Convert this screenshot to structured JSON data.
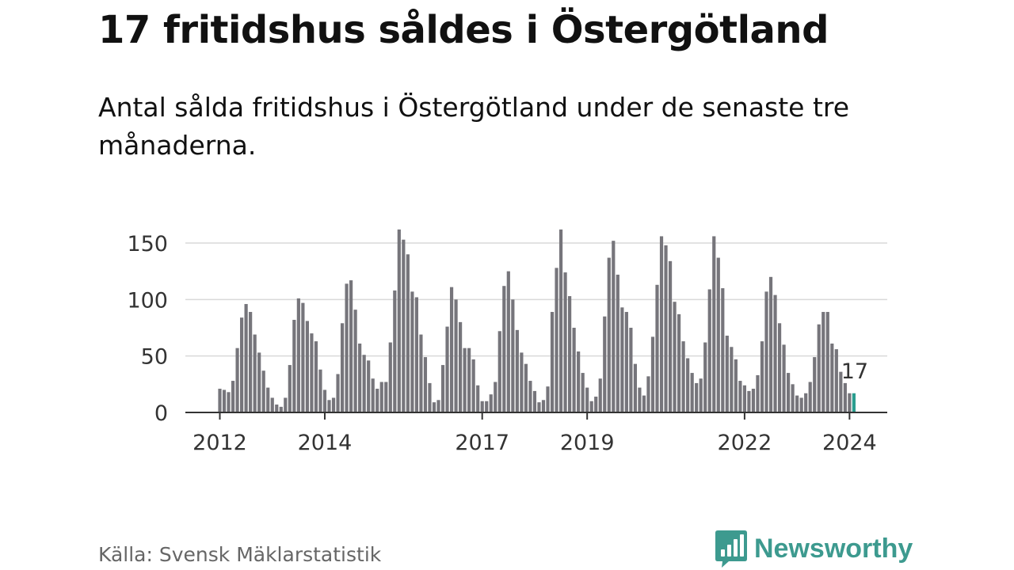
{
  "title": "17 fritidshus såldes i Östergötland",
  "subtitle": "Antal sålda fritidshus i Östergötland under de senaste tre månaderna.",
  "source": "Källa: Svensk Mäklarstatistik",
  "brand": {
    "name": "Newsworthy",
    "icon": "newsworthy-logo-icon",
    "color": "#3d9a8f"
  },
  "colors": {
    "bar": "#76757b",
    "highlight": "#2a9d8f",
    "grid": "#d9d9d9",
    "axis": "#333333"
  },
  "chart_data": {
    "type": "bar",
    "title": "17 fritidshus såldes i Östergötland",
    "xlabel": "",
    "ylabel": "",
    "ylim": [
      0,
      160
    ],
    "yticks": [
      0,
      50,
      100,
      150
    ],
    "grid": true,
    "x_start": "2012-01",
    "xtick_labels": [
      {
        "label": "2012",
        "index": 0
      },
      {
        "label": "2014",
        "index": 24
      },
      {
        "label": "2017",
        "index": 60
      },
      {
        "label": "2019",
        "index": 84
      },
      {
        "label": "2022",
        "index": 120
      },
      {
        "label": "2024",
        "index": 144
      }
    ],
    "values": [
      21,
      20,
      18,
      28,
      57,
      84,
      96,
      89,
      69,
      53,
      37,
      22,
      13,
      7,
      5,
      13,
      42,
      82,
      101,
      97,
      81,
      70,
      63,
      38,
      20,
      11,
      13,
      34,
      79,
      114,
      117,
      91,
      61,
      51,
      46,
      30,
      21,
      27,
      27,
      62,
      108,
      162,
      153,
      140,
      107,
      102,
      69,
      49,
      26,
      9,
      11,
      42,
      76,
      111,
      100,
      80,
      57,
      57,
      47,
      24,
      10,
      10,
      16,
      27,
      72,
      112,
      125,
      100,
      73,
      53,
      43,
      28,
      19,
      9,
      11,
      23,
      89,
      128,
      162,
      124,
      103,
      75,
      54,
      35,
      22,
      10,
      14,
      30,
      85,
      137,
      152,
      122,
      93,
      89,
      75,
      43,
      22,
      15,
      32,
      67,
      113,
      156,
      148,
      134,
      98,
      87,
      63,
      48,
      35,
      26,
      30,
      62,
      109,
      156,
      137,
      110,
      68,
      58,
      47,
      28,
      24,
      19,
      21,
      33,
      63,
      107,
      120,
      104,
      79,
      60,
      35,
      25,
      15,
      13,
      17,
      27,
      49,
      78,
      89,
      89,
      61,
      56,
      36,
      26,
      17,
      17
    ],
    "highlight_last": true,
    "last_value_label": "17"
  }
}
